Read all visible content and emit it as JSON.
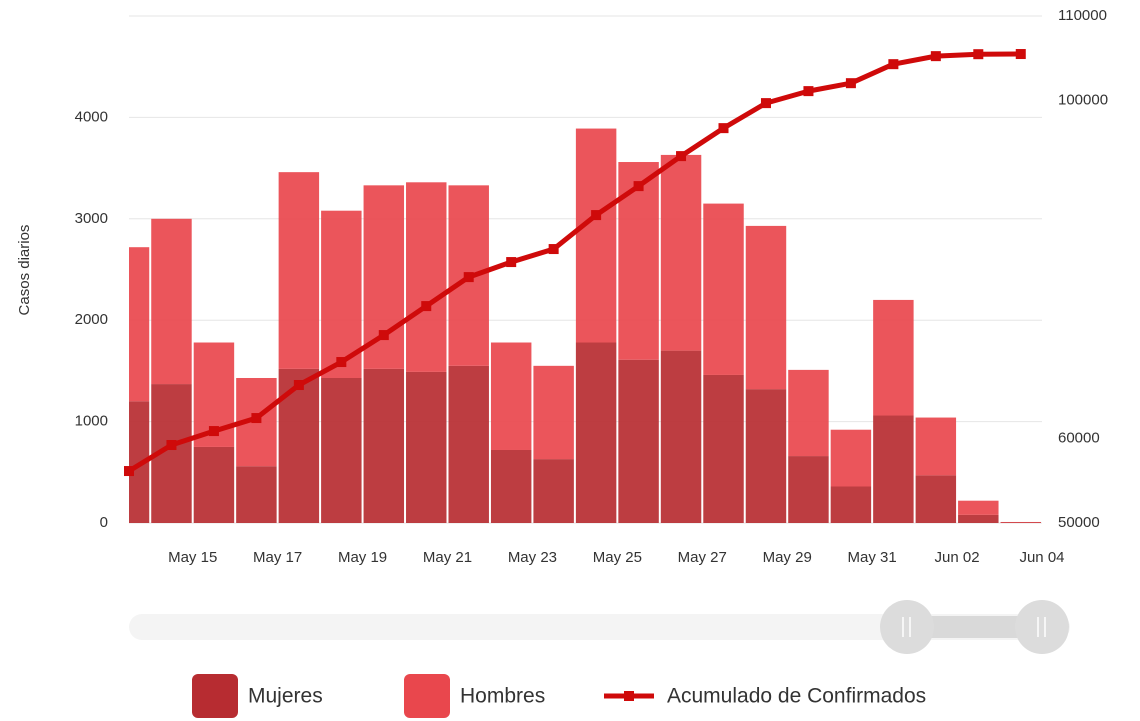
{
  "chart_data": {
    "type": "bar+line",
    "stacked": true,
    "y_label": "Casos diarios",
    "categories": [
      null,
      "May 15",
      null,
      "May 17",
      null,
      "May 19",
      null,
      "May 21",
      null,
      "May 23",
      null,
      "May 25",
      null,
      "May 27",
      null,
      "May 29",
      null,
      "May 31",
      null,
      "Jun 02",
      null,
      "Jun 04"
    ],
    "ylim": [
      0,
      5000
    ],
    "yticks": [
      0,
      1000,
      2000,
      3000,
      4000
    ],
    "y2lim": [
      50000,
      110000
    ],
    "y2ticks": [
      50000,
      60000,
      100000,
      110000
    ],
    "grid": true,
    "series": [
      {
        "name": "Mujeres",
        "type": "bar",
        "color": "#b72c31",
        "values": [
          1200,
          1370,
          750,
          560,
          1520,
          1430,
          1520,
          1490,
          1550,
          720,
          630,
          1780,
          1610,
          1700,
          1460,
          1320,
          660,
          360,
          1060,
          470,
          80,
          5
        ]
      },
      {
        "name": "Hombres",
        "type": "bar",
        "color": "#e9474d",
        "values": [
          1520,
          1630,
          1030,
          870,
          1940,
          1650,
          1810,
          1870,
          1780,
          1060,
          920,
          2110,
          1950,
          1930,
          1690,
          1610,
          850,
          560,
          1140,
          570,
          140,
          5
        ]
      },
      {
        "name": "Acumulado de Confirmados",
        "type": "line",
        "axis": "y2",
        "color": "#cf0a0a",
        "values": [
          56150,
          59230,
          60880,
          62420,
          66330,
          69050,
          72240,
          75670,
          79100,
          80880,
          82420,
          86440,
          89870,
          93420,
          96730,
          99690,
          101110,
          102050,
          104300,
          105250,
          105480,
          105500
        ]
      }
    ]
  }
}
